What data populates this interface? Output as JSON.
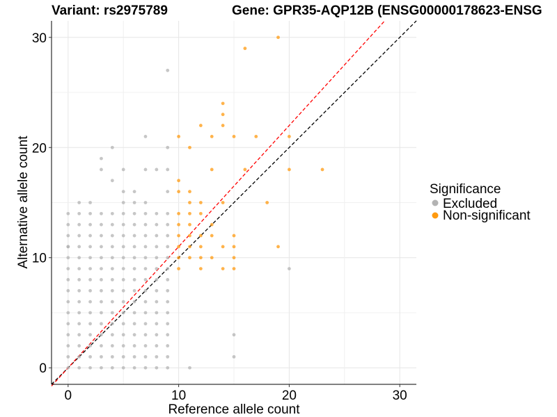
{
  "chart_data": {
    "type": "scatter",
    "title_left": "Variant: rs2975789",
    "title_right": "Gene: GPR35-AQP12B (ENSG00000178623-ENSG",
    "xlabel": "Reference allele count",
    "ylabel": "Alternative allele count",
    "xlim": [
      -1.5,
      31.5
    ],
    "ylim": [
      -1.5,
      31.5
    ],
    "xticks": [
      0,
      10,
      20,
      30
    ],
    "yticks": [
      0,
      10,
      20,
      30
    ],
    "grid": true,
    "legend": {
      "title": "Significance",
      "position": "right",
      "entries": [
        {
          "label": "Excluded",
          "color": "#b3b3b3"
        },
        {
          "label": "Non-significant",
          "color": "#ff9a0f"
        }
      ]
    },
    "reference_lines": [
      {
        "name": "identity",
        "color": "#000000",
        "slope": 1,
        "intercept": 0,
        "style": "dashed"
      },
      {
        "name": "fit",
        "color": "#ff0000",
        "slope": 1.1,
        "intercept": 0,
        "style": "dashed"
      }
    ],
    "series": [
      {
        "name": "Excluded",
        "color": "#b3b3b3",
        "points": [
          [
            9,
            27
          ],
          [
            7,
            21
          ],
          [
            4,
            20
          ],
          [
            9,
            20
          ],
          [
            3,
            19
          ],
          [
            3,
            18
          ],
          [
            5,
            18
          ],
          [
            4,
            17
          ],
          [
            7,
            18
          ],
          [
            8,
            18
          ],
          [
            9,
            18
          ],
          [
            5,
            16
          ],
          [
            6,
            16
          ],
          [
            5,
            15
          ],
          [
            6,
            15
          ],
          [
            7,
            15
          ],
          [
            1,
            15
          ],
          [
            2,
            15
          ],
          [
            9,
            16
          ],
          [
            0,
            11
          ],
          [
            20,
            9
          ],
          [
            15,
            3
          ],
          [
            15,
            1
          ],
          [
            11,
            0
          ]
        ],
        "grid_block": {
          "x_from": 0,
          "x_to": 9,
          "y_from": 0,
          "y_to": 14
        }
      },
      {
        "name": "Non-significant",
        "color": "#ff9a0f",
        "points": [
          [
            19,
            30
          ],
          [
            16,
            29
          ],
          [
            14,
            24
          ],
          [
            14,
            23
          ],
          [
            12,
            22
          ],
          [
            14,
            22
          ],
          [
            10,
            21
          ],
          [
            13,
            21
          ],
          [
            15,
            21
          ],
          [
            17,
            21
          ],
          [
            20,
            21
          ],
          [
            11,
            20
          ],
          [
            13,
            18
          ],
          [
            16,
            18
          ],
          [
            20,
            18
          ],
          [
            23,
            18
          ],
          [
            10,
            17
          ],
          [
            10,
            16
          ],
          [
            11,
            16
          ],
          [
            11,
            15
          ],
          [
            12,
            15
          ],
          [
            14,
            15
          ],
          [
            18,
            15
          ],
          [
            10,
            14
          ],
          [
            11,
            14
          ],
          [
            12,
            14
          ],
          [
            10,
            13
          ],
          [
            11,
            13
          ],
          [
            13,
            13
          ],
          [
            10,
            12
          ],
          [
            11,
            12
          ],
          [
            12,
            12
          ],
          [
            13,
            12
          ],
          [
            15,
            12
          ],
          [
            10,
            11
          ],
          [
            11,
            11
          ],
          [
            12,
            11
          ],
          [
            14,
            11
          ],
          [
            15,
            11
          ],
          [
            19,
            11
          ],
          [
            10,
            10
          ],
          [
            11,
            10
          ],
          [
            12,
            10
          ],
          [
            13,
            10
          ],
          [
            15,
            10
          ],
          [
            10,
            9
          ],
          [
            12,
            9
          ],
          [
            14,
            9
          ],
          [
            15,
            9
          ]
        ]
      }
    ]
  }
}
